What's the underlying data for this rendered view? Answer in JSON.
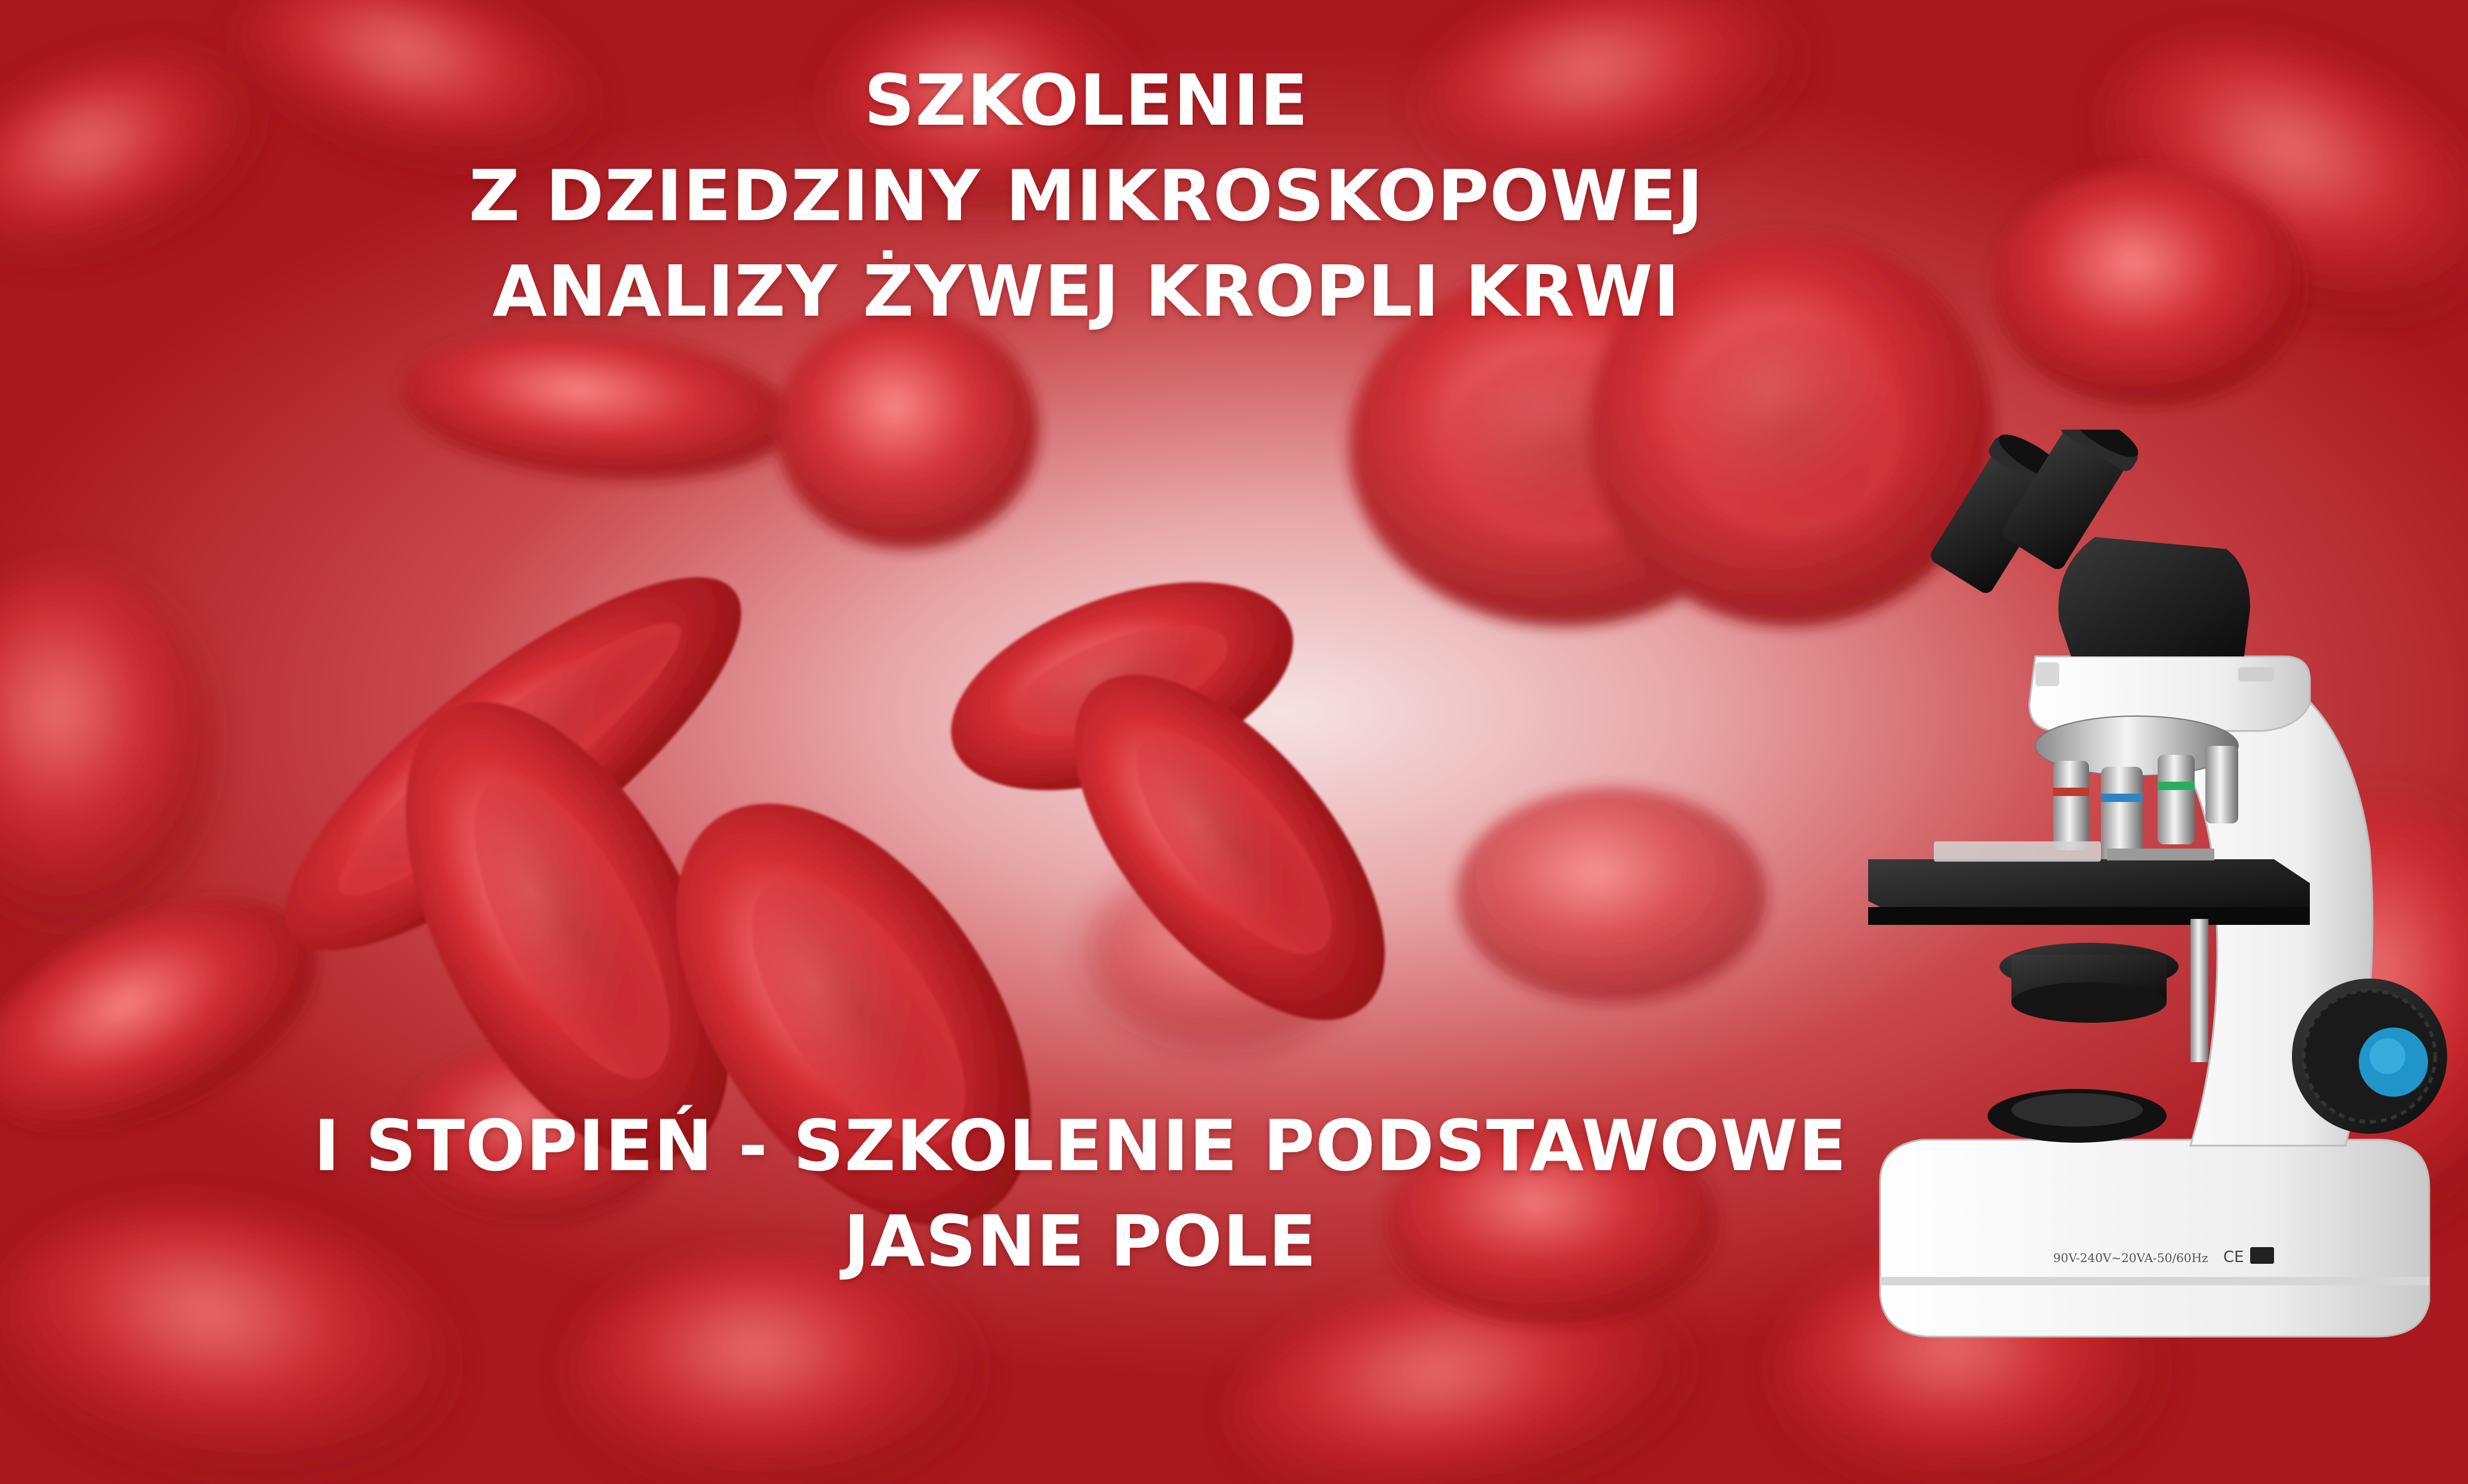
{
  "title": {
    "lines": [
      "SZKOLENIE",
      "Z DZIEDZINY MIKROSKOPOWEJ",
      "ANALIZY ŻYWEJ KROPLI KRWI"
    ]
  },
  "subtitle": {
    "lines": [
      "I STOPIEŃ - SZKOLENIE PODSTAWOWE",
      "JASNE POLE"
    ]
  },
  "microscope": {
    "ce_mark": "CE",
    "power_label": "90V-240V~20VA-50/60Hz"
  },
  "colors": {
    "background": "#c1272d",
    "cell": "#c8242b",
    "text": "#ffffff",
    "microscope_body": "#f1f1f1",
    "microscope_dark": "#1e1e1e",
    "knob_accent": "#1f95c9"
  },
  "icons": [
    "red-blood-cell-icon",
    "microscope-icon"
  ]
}
